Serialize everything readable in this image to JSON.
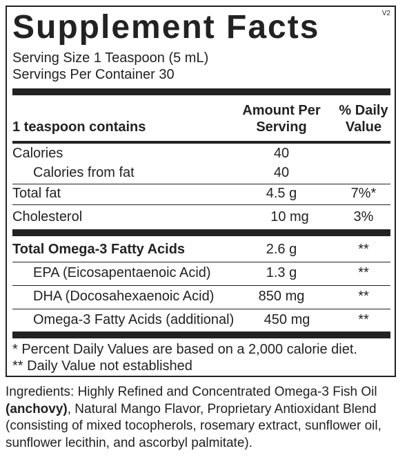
{
  "title": "Supplement Facts",
  "version": "V2",
  "serving_size": "Serving Size 1 Teaspoon (5 mL)",
  "servings_per_container": "Servings Per Container 30",
  "header": {
    "contains": "1 teaspoon contains",
    "amount_line1": "Amount Per",
    "amount_line2": "Serving",
    "dv_line1": "% Daily",
    "dv_line2": "Value"
  },
  "rows": [
    {
      "name": "Calories",
      "amount": "40",
      "dv": ""
    },
    {
      "name": "Calories from fat",
      "amount": "40",
      "dv": ""
    },
    {
      "name": "Total fat",
      "amount": "4.5 g",
      "dv": "7%*"
    },
    {
      "name": "Cholesterol",
      "amount": "10 mg",
      "dv": "3%"
    },
    {
      "name": "Total Omega-3 Fatty Acids",
      "amount": "2.6 g",
      "dv": "**"
    },
    {
      "name": "EPA (Eicosapentaenoic Acid)",
      "amount": "1.3 g",
      "dv": "**"
    },
    {
      "name": "DHA (Docosahexaenoic Acid)",
      "amount": "850 mg",
      "dv": "**"
    },
    {
      "name": "Omega-3 Fatty Acids (additional)",
      "amount": "450 mg",
      "dv": "**"
    }
  ],
  "footnotes": [
    "* Percent Daily Values are based on a 2,000 calorie diet.",
    "** Daily Value not established"
  ],
  "ingredients": {
    "prefix": "Ingredients: Highly Refined and Concentrated Omega-3 Fish Oil ",
    "bold": "(anchovy)",
    "suffix": ", Natural Mango Flavor, Proprietary Antioxidant Blend (consisting of mixed tocopherols,  rosemary extract, sunflower oil, sunflower lecithin, and ascorbyl palmitate)."
  }
}
